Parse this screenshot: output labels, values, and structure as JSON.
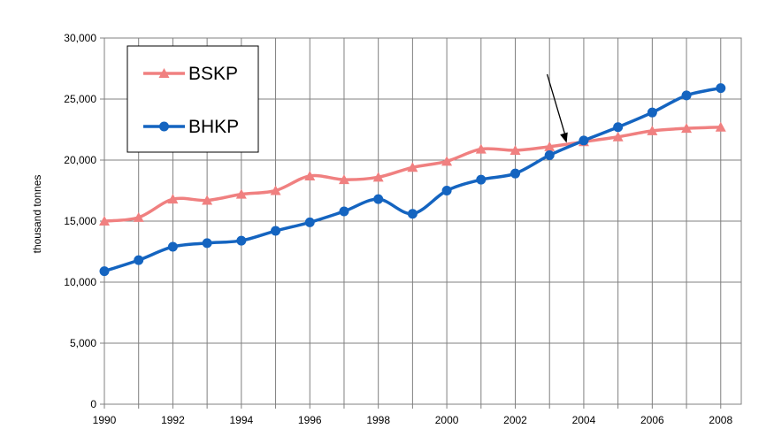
{
  "chart_data": {
    "type": "line",
    "ylabel": "thousand tonnes",
    "ylim": [
      0,
      30000
    ],
    "yticks": [
      "0",
      "5,000",
      "10,000",
      "15,000",
      "20,000",
      "25,000",
      "30,000"
    ],
    "xlim": [
      1990,
      2008.6
    ],
    "xticks": [
      "1990",
      "1992",
      "1994",
      "1996",
      "1998",
      "2000",
      "2002",
      "2004",
      "2006",
      "2008"
    ],
    "grid": true,
    "legend_position": "top-left",
    "series": [
      {
        "name": "BSKP",
        "color": "#f08080",
        "marker": "triangle",
        "x": [
          1990,
          1991,
          1992,
          1993,
          1994,
          1995,
          1996,
          1997,
          1998,
          1999,
          2000,
          2001,
          2002,
          2003,
          2004,
          2005,
          2006,
          2007,
          2008
        ],
        "values": [
          15000,
          15300,
          16800,
          16700,
          17200,
          17500,
          18700,
          18400,
          18600,
          19400,
          19900,
          20900,
          20800,
          21100,
          21500,
          21900,
          22400,
          22600,
          22700
        ]
      },
      {
        "name": "BHKP",
        "color": "#1464c0",
        "marker": "circle",
        "x": [
          1990,
          1991,
          1992,
          1993,
          1994,
          1995,
          1996,
          1997,
          1998,
          1999,
          2000,
          2001,
          2002,
          2003,
          2004,
          2005,
          2006,
          2007,
          2008
        ],
        "values": [
          10900,
          11800,
          12900,
          13200,
          13400,
          14200,
          14900,
          15800,
          16800,
          15600,
          17500,
          18400,
          18900,
          20400,
          21600,
          22700,
          23900,
          25300,
          25900
        ]
      }
    ],
    "annotation": {
      "type": "arrow",
      "target_x": 2003.5,
      "target_y": 21200
    }
  }
}
